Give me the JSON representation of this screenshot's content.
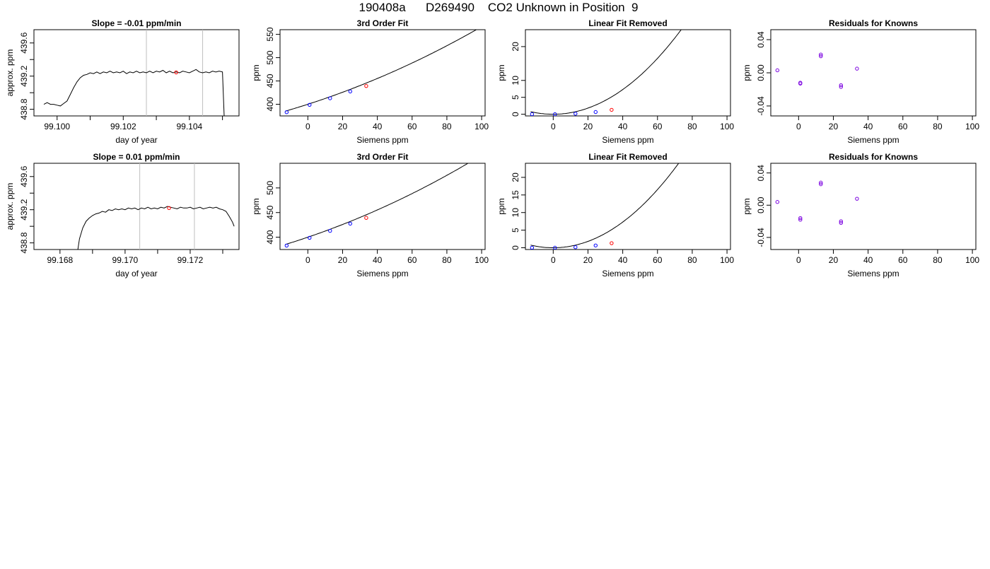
{
  "page": {
    "title": "190408a      D269490    CO2 Unknown in Position  9"
  },
  "colors": {
    "trace": "#000000",
    "fit_curve": "#000000",
    "known_points": "#0000ff",
    "residual_points": "#7a00e0",
    "unknown_point": "#ff0000",
    "window_lines": "#bfbfbf"
  },
  "chart_data": [
    {
      "type": "line",
      "title": "Slope =  -0.01  ppm/min",
      "xlabel": "day of year",
      "ylabel": "approx. ppm",
      "xlim": [
        99.0993,
        99.1055
      ],
      "ylim": [
        438.72,
        439.76
      ],
      "xticks": [
        99.1,
        99.101,
        99.102,
        99.103,
        99.104,
        99.105
      ],
      "xtick_labels": [
        "99.100",
        "",
        "99.102",
        "",
        "99.104",
        ""
      ],
      "yticks": [
        438.8,
        439.0,
        439.2,
        439.4,
        439.6
      ],
      "ytick_labels": [
        "438.8",
        "",
        "439.2",
        "",
        "439.6"
      ],
      "vlines": [
        99.1027,
        99.1044
      ],
      "series": [
        {
          "values": [
            [
              99.0996,
              438.86
            ],
            [
              99.0997,
              438.88
            ],
            [
              99.0998,
              438.86
            ],
            [
              99.0999,
              438.86
            ],
            [
              99.1,
              438.85
            ],
            [
              99.1001,
              438.84
            ],
            [
              99.1002,
              438.87
            ],
            [
              99.1003,
              438.9
            ],
            [
              99.1004,
              438.98
            ],
            [
              99.1005,
              439.06
            ],
            [
              99.1006,
              439.13
            ],
            [
              99.1007,
              439.18
            ],
            [
              99.1008,
              439.21
            ],
            [
              99.1009,
              439.22
            ],
            [
              99.101,
              439.24
            ],
            [
              99.1011,
              439.23
            ],
            [
              99.1012,
              439.25
            ],
            [
              99.1013,
              439.23
            ],
            [
              99.1014,
              439.25
            ],
            [
              99.1015,
              439.24
            ],
            [
              99.1016,
              439.26
            ],
            [
              99.1017,
              439.24
            ],
            [
              99.1018,
              439.25
            ],
            [
              99.1019,
              439.24
            ],
            [
              99.102,
              439.26
            ],
            [
              99.1021,
              439.23
            ],
            [
              99.1022,
              439.25
            ],
            [
              99.1023,
              439.24
            ],
            [
              99.1024,
              439.26
            ],
            [
              99.1025,
              439.24
            ],
            [
              99.1026,
              439.25
            ],
            [
              99.1027,
              439.24
            ],
            [
              99.1028,
              439.26
            ],
            [
              99.1029,
              439.24
            ],
            [
              99.103,
              439.26
            ],
            [
              99.1031,
              439.25
            ],
            [
              99.1032,
              439.27
            ],
            [
              99.1033,
              439.24
            ],
            [
              99.1034,
              439.26
            ],
            [
              99.1035,
              439.24
            ],
            [
              99.1036,
              439.25
            ],
            [
              99.1037,
              439.24
            ],
            [
              99.1038,
              439.26
            ],
            [
              99.1039,
              439.25
            ],
            [
              99.104,
              439.24
            ],
            [
              99.1041,
              439.26
            ],
            [
              99.1042,
              439.28
            ],
            [
              99.1043,
              439.25
            ],
            [
              99.1044,
              439.24
            ],
            [
              99.1045,
              439.25
            ],
            [
              99.1046,
              439.24
            ],
            [
              99.1047,
              439.26
            ],
            [
              99.1048,
              439.25
            ],
            [
              99.1049,
              439.26
            ],
            [
              99.105,
              439.25
            ],
            [
              99.10505,
              438.72
            ]
          ]
        }
      ],
      "points": [
        {
          "x": 99.1036,
          "y": 439.245,
          "color": "red"
        }
      ]
    },
    {
      "type": "scatter",
      "title": "3rd Order Fit",
      "xlabel": "Siemens ppm",
      "ylabel": "ppm",
      "xlim": [
        -16,
        102
      ],
      "ylim": [
        375,
        560
      ],
      "xticks": [
        0,
        20,
        40,
        60,
        80,
        100
      ],
      "yticks": [
        400,
        450,
        500,
        550
      ],
      "curve_fn": "ppm",
      "points": [
        {
          "x": -12.2,
          "y": 383.0,
          "color": "blue"
        },
        {
          "x": 1.0,
          "y": 398.8,
          "color": "blue"
        },
        {
          "x": 12.8,
          "y": 412.9,
          "color": "blue"
        },
        {
          "x": 24.4,
          "y": 427.5,
          "color": "blue"
        },
        {
          "x": 33.6,
          "y": 439.2,
          "color": "red"
        }
      ]
    },
    {
      "type": "scatter",
      "title": "Linear Fit Removed",
      "xlabel": "Siemens ppm",
      "ylabel": "ppm",
      "xlim": [
        -16,
        102
      ],
      "ylim": [
        -0.5,
        25
      ],
      "xticks": [
        0,
        20,
        40,
        60,
        80,
        100
      ],
      "yticks": [
        0,
        5,
        10,
        20
      ],
      "curve_fn": "nonlinear",
      "points": [
        {
          "x": -12.2,
          "y": 0.02,
          "color": "blue"
        },
        {
          "x": 1.0,
          "y": 0.0,
          "color": "blue"
        },
        {
          "x": 12.8,
          "y": 0.16,
          "color": "blue"
        },
        {
          "x": 24.4,
          "y": 0.65,
          "color": "blue"
        },
        {
          "x": 33.6,
          "y": 1.3,
          "color": "red"
        }
      ]
    },
    {
      "type": "scatter",
      "title": "Residuals for Knowns",
      "xlabel": "Siemens ppm",
      "ylabel": "ppm",
      "xlim": [
        -16,
        102
      ],
      "ylim": [
        -0.052,
        0.052
      ],
      "xticks": [
        0,
        20,
        40,
        60,
        80,
        100
      ],
      "yticks": [
        -0.04,
        0.0,
        0.04
      ],
      "ytick_labels": [
        "-0.04",
        "0.00",
        "0.04"
      ],
      "points": [
        {
          "x": -12.2,
          "y": 0.003,
          "color": "purple"
        },
        {
          "x": 1.0,
          "y": -0.012,
          "color": "purple"
        },
        {
          "x": 1.0,
          "y": -0.013,
          "color": "purple"
        },
        {
          "x": 12.8,
          "y": 0.02,
          "color": "purple"
        },
        {
          "x": 12.8,
          "y": 0.022,
          "color": "purple"
        },
        {
          "x": 24.4,
          "y": -0.015,
          "color": "purple"
        },
        {
          "x": 24.4,
          "y": -0.017,
          "color": "purple"
        },
        {
          "x": 33.6,
          "y": 0.005,
          "color": "purple"
        }
      ]
    },
    {
      "type": "line",
      "title": "Slope =  0.01  ppm/min",
      "xlabel": "day of year",
      "ylabel": "approx. ppm",
      "xlim": [
        99.1672,
        99.1735
      ],
      "ylim": [
        438.72,
        439.76
      ],
      "xticks": [
        99.168,
        99.169,
        99.17,
        99.171,
        99.172,
        99.173
      ],
      "xtick_labels": [
        "99.168",
        "",
        "99.170",
        "",
        "99.172",
        ""
      ],
      "yticks": [
        438.8,
        439.0,
        439.2,
        439.4,
        439.6
      ],
      "ytick_labels": [
        "438.8",
        "",
        "439.2",
        "",
        "439.6"
      ],
      "vlines": [
        99.17045,
        99.17213
      ],
      "series": [
        {
          "values": [
            [
              99.16855,
              438.72
            ],
            [
              99.1686,
              438.85
            ],
            [
              99.1687,
              438.98
            ],
            [
              99.1688,
              439.06
            ],
            [
              99.1689,
              439.1
            ],
            [
              99.169,
              439.13
            ],
            [
              99.1691,
              439.15
            ],
            [
              99.1692,
              439.16
            ],
            [
              99.1693,
              439.18
            ],
            [
              99.1694,
              439.17
            ],
            [
              99.1695,
              439.2
            ],
            [
              99.1696,
              439.19
            ],
            [
              99.1697,
              439.21
            ],
            [
              99.1698,
              439.2
            ],
            [
              99.1699,
              439.21
            ],
            [
              99.17,
              439.2
            ],
            [
              99.1701,
              439.22
            ],
            [
              99.1702,
              439.21
            ],
            [
              99.1703,
              439.22
            ],
            [
              99.1704,
              439.2
            ],
            [
              99.1705,
              439.22
            ],
            [
              99.1706,
              439.21
            ],
            [
              99.1707,
              439.23
            ],
            [
              99.1708,
              439.21
            ],
            [
              99.1709,
              439.22
            ],
            [
              99.171,
              439.21
            ],
            [
              99.1711,
              439.23
            ],
            [
              99.1712,
              439.22
            ],
            [
              99.1713,
              439.24
            ],
            [
              99.1714,
              439.23
            ],
            [
              99.1715,
              439.22
            ],
            [
              99.1716,
              439.21
            ],
            [
              99.1717,
              439.23
            ],
            [
              99.1718,
              439.22
            ],
            [
              99.1719,
              439.22
            ],
            [
              99.172,
              439.23
            ],
            [
              99.1721,
              439.21
            ],
            [
              99.1722,
              439.22
            ],
            [
              99.1723,
              439.23
            ],
            [
              99.1724,
              439.21
            ],
            [
              99.1725,
              439.22
            ],
            [
              99.1726,
              439.23
            ],
            [
              99.1727,
              439.22
            ],
            [
              99.1728,
              439.23
            ],
            [
              99.1729,
              439.21
            ],
            [
              99.173,
              439.2
            ],
            [
              99.1731,
              439.18
            ],
            [
              99.1732,
              439.12
            ],
            [
              99.1733,
              439.05
            ],
            [
              99.17335,
              439.0
            ]
          ]
        }
      ],
      "points": [
        {
          "x": 99.17135,
          "y": 439.22,
          "color": "red"
        }
      ]
    },
    {
      "type": "scatter",
      "title": "3rd Order Fit",
      "xlabel": "Siemens ppm",
      "ylabel": "ppm",
      "xlim": [
        -16,
        102
      ],
      "ylim": [
        375,
        550
      ],
      "xticks": [
        0,
        20,
        40,
        60,
        80,
        100
      ],
      "yticks": [
        400,
        450,
        500
      ],
      "curve_fn": "ppm",
      "points": [
        {
          "x": -12.2,
          "y": 383.0,
          "color": "blue"
        },
        {
          "x": 1.0,
          "y": 398.8,
          "color": "blue"
        },
        {
          "x": 12.8,
          "y": 412.9,
          "color": "blue"
        },
        {
          "x": 24.4,
          "y": 427.5,
          "color": "blue"
        },
        {
          "x": 33.6,
          "y": 439.2,
          "color": "red"
        }
      ]
    },
    {
      "type": "scatter",
      "title": "Linear Fit Removed",
      "xlabel": "Siemens ppm",
      "ylabel": "ppm",
      "xlim": [
        -16,
        102
      ],
      "ylim": [
        -0.5,
        24
      ],
      "xticks": [
        0,
        20,
        40,
        60,
        80,
        100
      ],
      "yticks": [
        0,
        5,
        10,
        15,
        20
      ],
      "curve_fn": "nonlinear",
      "points": [
        {
          "x": -12.2,
          "y": 0.02,
          "color": "blue"
        },
        {
          "x": 1.0,
          "y": 0.0,
          "color": "blue"
        },
        {
          "x": 12.8,
          "y": 0.16,
          "color": "blue"
        },
        {
          "x": 24.4,
          "y": 0.65,
          "color": "blue"
        },
        {
          "x": 33.6,
          "y": 1.3,
          "color": "red"
        }
      ]
    },
    {
      "type": "scatter",
      "title": "Residuals for Knowns",
      "xlabel": "Siemens ppm",
      "ylabel": "ppm",
      "xlim": [
        -16,
        102
      ],
      "ylim": [
        -0.055,
        0.052
      ],
      "xticks": [
        0,
        20,
        40,
        60,
        80,
        100
      ],
      "yticks": [
        -0.04,
        0.0,
        0.04
      ],
      "ytick_labels": [
        "-0.04",
        "0.00",
        "0.04"
      ],
      "points": [
        {
          "x": -12.2,
          "y": 0.004,
          "color": "purple"
        },
        {
          "x": 1.0,
          "y": -0.016,
          "color": "purple"
        },
        {
          "x": 1.0,
          "y": -0.018,
          "color": "purple"
        },
        {
          "x": 12.8,
          "y": 0.026,
          "color": "purple"
        },
        {
          "x": 12.8,
          "y": 0.028,
          "color": "purple"
        },
        {
          "x": 24.4,
          "y": -0.02,
          "color": "purple"
        },
        {
          "x": 24.4,
          "y": -0.022,
          "color": "purple"
        },
        {
          "x": 33.6,
          "y": 0.008,
          "color": "purple"
        }
      ]
    }
  ]
}
